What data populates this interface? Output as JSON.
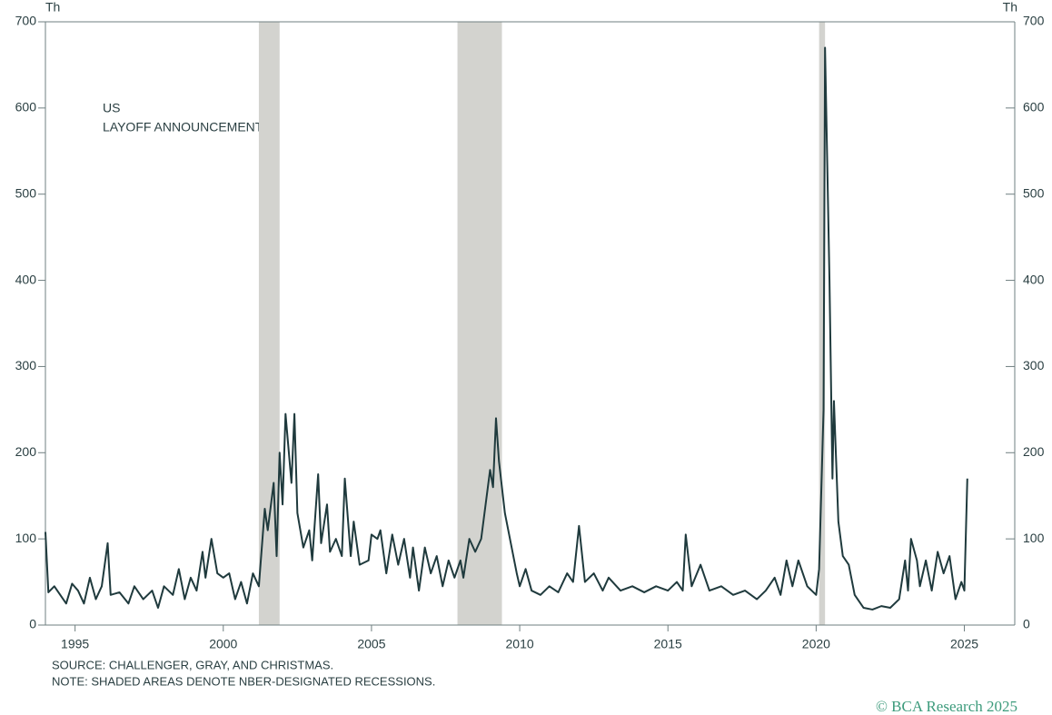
{
  "chart_data": {
    "type": "line",
    "annotation": [
      "US",
      "LAYOFF ANNOUNCEMENTS"
    ],
    "y_label": "Th",
    "y2_label": "Th",
    "source": "SOURCE: CHALLENGER, GRAY, AND CHRISTMAS.",
    "note": "NOTE: SHADED AREAS DENOTE NBER-DESIGNATED RECESSIONS.",
    "credit": "© BCA Research 2025",
    "xlim": [
      1994,
      2026.7
    ],
    "xticks": [
      1995,
      2000,
      2005,
      2010,
      2015,
      2020,
      2025
    ],
    "ylim": [
      0,
      700
    ],
    "yticks": [
      0,
      100,
      200,
      300,
      400,
      500,
      600,
      700
    ],
    "y2lim": [
      0,
      700
    ],
    "y2ticks": [
      0,
      100,
      200,
      300,
      400,
      500,
      600,
      700
    ],
    "recessions": [
      [
        2001.2,
        2001.9
      ],
      [
        2007.9,
        2009.4
      ],
      [
        2020.1,
        2020.3
      ]
    ],
    "recession_color": "#d3d3cf",
    "x": [
      1994.0,
      1994.1,
      1994.3,
      1994.5,
      1994.7,
      1994.9,
      1995.1,
      1995.3,
      1995.5,
      1995.7,
      1995.9,
      1996.1,
      1996.2,
      1996.5,
      1996.8,
      1997.0,
      1997.3,
      1997.6,
      1997.8,
      1998.0,
      1998.3,
      1998.5,
      1998.7,
      1998.9,
      1999.1,
      1999.3,
      1999.4,
      1999.6,
      1999.8,
      2000.0,
      2000.2,
      2000.4,
      2000.6,
      2000.8,
      2001.0,
      2001.2,
      2001.4,
      2001.5,
      2001.7,
      2001.8,
      2001.9,
      2002.0,
      2002.1,
      2002.3,
      2002.4,
      2002.5,
      2002.7,
      2002.9,
      2003.0,
      2003.2,
      2003.3,
      2003.5,
      2003.6,
      2003.8,
      2004.0,
      2004.1,
      2004.3,
      2004.4,
      2004.6,
      2004.9,
      2005.0,
      2005.2,
      2005.3,
      2005.5,
      2005.7,
      2005.9,
      2006.1,
      2006.3,
      2006.4,
      2006.6,
      2006.8,
      2007.0,
      2007.2,
      2007.4,
      2007.6,
      2007.8,
      2008.0,
      2008.1,
      2008.3,
      2008.5,
      2008.7,
      2009.0,
      2009.1,
      2009.2,
      2009.3,
      2009.5,
      2009.7,
      2009.9,
      2010.0,
      2010.2,
      2010.4,
      2010.7,
      2011.0,
      2011.3,
      2011.6,
      2011.8,
      2012.0,
      2012.2,
      2012.5,
      2012.8,
      2013.0,
      2013.4,
      2013.8,
      2014.2,
      2014.6,
      2015.0,
      2015.3,
      2015.5,
      2015.6,
      2015.8,
      2016.1,
      2016.4,
      2016.8,
      2017.2,
      2017.6,
      2018.0,
      2018.3,
      2018.6,
      2018.8,
      2019.0,
      2019.2,
      2019.4,
      2019.7,
      2020.0,
      2020.1,
      2020.25,
      2020.3,
      2020.45,
      2020.55,
      2020.6,
      2020.75,
      2020.9,
      2021.1,
      2021.3,
      2021.6,
      2021.9,
      2022.2,
      2022.5,
      2022.8,
      2023.0,
      2023.1,
      2023.2,
      2023.4,
      2023.5,
      2023.7,
      2023.9,
      2024.1,
      2024.3,
      2024.5,
      2024.7,
      2024.9,
      2025.0,
      2025.1
    ],
    "series": [
      {
        "color": "#1f3a3d",
        "values": [
          108,
          38,
          45,
          35,
          25,
          48,
          40,
          25,
          55,
          30,
          45,
          95,
          35,
          38,
          25,
          45,
          30,
          40,
          20,
          45,
          35,
          65,
          30,
          55,
          40,
          85,
          55,
          100,
          60,
          55,
          60,
          30,
          50,
          25,
          60,
          45,
          135,
          110,
          165,
          80,
          200,
          140,
          245,
          165,
          245,
          130,
          90,
          110,
          75,
          175,
          95,
          140,
          85,
          100,
          80,
          170,
          80,
          120,
          70,
          75,
          105,
          100,
          110,
          60,
          105,
          70,
          100,
          55,
          90,
          40,
          90,
          60,
          80,
          45,
          75,
          55,
          75,
          55,
          100,
          85,
          100,
          180,
          160,
          240,
          190,
          130,
          95,
          60,
          45,
          65,
          40,
          35,
          45,
          38,
          60,
          50,
          115,
          50,
          60,
          40,
          55,
          40,
          45,
          38,
          45,
          40,
          50,
          40,
          105,
          45,
          70,
          40,
          45,
          35,
          40,
          30,
          40,
          55,
          35,
          75,
          45,
          75,
          45,
          35,
          65,
          250,
          670,
          400,
          170,
          260,
          120,
          80,
          70,
          35,
          20,
          18,
          22,
          20,
          30,
          75,
          40,
          100,
          75,
          45,
          75,
          40,
          85,
          60,
          80,
          30,
          50,
          40,
          170
        ]
      }
    ]
  }
}
